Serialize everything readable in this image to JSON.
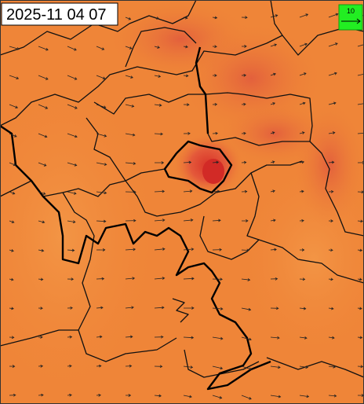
{
  "timestamp": "2025-11 04 07",
  "legend": {
    "label": "10"
  }
}
